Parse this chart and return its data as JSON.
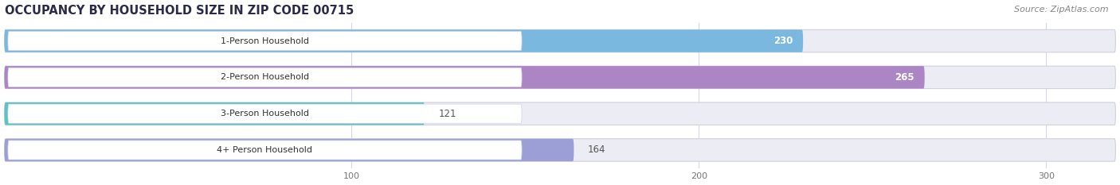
{
  "title": "OCCUPANCY BY HOUSEHOLD SIZE IN ZIP CODE 00715",
  "source": "Source: ZipAtlas.com",
  "categories": [
    "1-Person Household",
    "2-Person Household",
    "3-Person Household",
    "4+ Person Household"
  ],
  "values": [
    230,
    265,
    121,
    164
  ],
  "bar_colors": [
    "#7ab8e0",
    "#ab85c4",
    "#5bc4be",
    "#9b9fd6"
  ],
  "bar_bg_color": "#ececf4",
  "label_colors": [
    "white",
    "white",
    "#444444",
    "#444444"
  ],
  "xlim": [
    0,
    320
  ],
  "xticks": [
    100,
    200,
    300
  ],
  "figsize": [
    14.06,
    2.33
  ],
  "dpi": 100,
  "title_fontsize": 10.5,
  "bar_height": 0.62,
  "bar_label_fontsize": 8.5,
  "tick_fontsize": 8,
  "category_fontsize": 8,
  "source_fontsize": 8
}
